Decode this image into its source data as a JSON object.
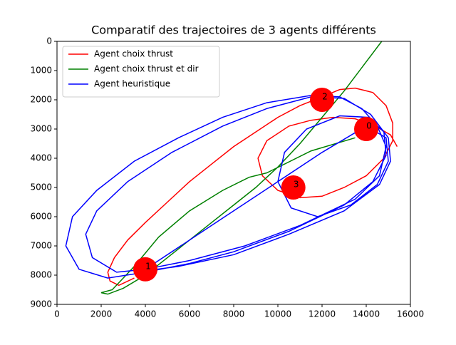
{
  "chart_data": {
    "type": "line",
    "title": "Comparatif des trajectoires de 3 agents différents",
    "xlim": [
      0,
      16000
    ],
    "xticks": [
      0,
      2000,
      4000,
      6000,
      8000,
      10000,
      12000,
      14000,
      16000
    ],
    "ylim": [
      9000,
      0
    ],
    "yticks": [
      0,
      1000,
      2000,
      3000,
      4000,
      5000,
      6000,
      7000,
      8000,
      9000
    ],
    "legend": "upper left",
    "series": [
      {
        "name": "Agent choix thrust",
        "color": "#ff0000",
        "x": [
          3500,
          2800,
          2400,
          2300,
          2600,
          3200,
          4000,
          5000,
          6000,
          7000,
          8000,
          9000,
          10000,
          11000,
          12000,
          12800,
          13500,
          14300,
          14900,
          15200,
          15200,
          14800,
          14000,
          13000,
          12000,
          11000,
          10000,
          9300,
          9100,
          9500,
          10500,
          11500,
          12500,
          13500,
          14400,
          15100,
          15400
        ],
        "values": [
          8100,
          8350,
          8200,
          7900,
          7400,
          6800,
          6200,
          5500,
          4800,
          4200,
          3600,
          3100,
          2600,
          2200,
          1900,
          1650,
          1600,
          1750,
          2200,
          2800,
          3400,
          4000,
          4600,
          5000,
          5300,
          5350,
          5100,
          4600,
          4000,
          3400,
          2900,
          2700,
          2600,
          2650,
          2900,
          3200,
          3600
        ]
      },
      {
        "name": "Agent choix thrust et dir",
        "color": "#008000",
        "x": [
          13500,
          11500,
          9500,
          8700,
          7500,
          6000,
          4600,
          3500,
          2500,
          2000,
          2300,
          3000,
          4000,
          5000,
          6000,
          7000,
          8000,
          9000,
          10000,
          11000,
          12000,
          13000,
          14000,
          14700
        ],
        "values": [
          3300,
          3750,
          4500,
          4650,
          5100,
          5800,
          6700,
          7700,
          8500,
          8600,
          8650,
          8450,
          8000,
          7400,
          6800,
          6200,
          5600,
          5000,
          4300,
          3500,
          2600,
          1700,
          700,
          0
        ]
      },
      {
        "name": "Agent heuristique",
        "color": "#0000ff",
        "x": [
          4000,
          7000,
          10000,
          12000,
          14000,
          14900,
          15000,
          14500,
          13300,
          11800,
          10600,
          10000,
          10300,
          11300,
          12800,
          14100,
          14800,
          14900,
          14300,
          13000,
          10500,
          8000,
          6000,
          4000,
          2300,
          1000,
          400,
          700,
          1800,
          3500,
          5500,
          7500,
          9500,
          11500,
          12800,
          13800,
          14500,
          14900,
          14600,
          13500,
          11000,
          8500,
          6000,
          4000,
          2700,
          1600,
          1300,
          1800,
          3200,
          5200,
          7500,
          9500,
          11500,
          13000,
          14200,
          15000,
          15100,
          14600,
          13000,
          10500,
          8000,
          5500,
          4000
        ],
        "values": [
          7800,
          6300,
          4800,
          3800,
          2900,
          3300,
          4100,
          4900,
          5600,
          6000,
          5700,
          4800,
          3800,
          3000,
          2550,
          2600,
          3100,
          3900,
          4800,
          5600,
          6500,
          7200,
          7600,
          7900,
          8100,
          7800,
          7000,
          6000,
          5100,
          4100,
          3300,
          2600,
          2100,
          1850,
          1900,
          2300,
          2900,
          3600,
          4600,
          5400,
          6300,
          7000,
          7500,
          7800,
          7900,
          7400,
          6600,
          5800,
          4800,
          3800,
          2900,
          2300,
          1900,
          1950,
          2500,
          3300,
          4100,
          4900,
          5800,
          6600,
          7300,
          7700,
          7850
        ]
      }
    ],
    "checkpoints": {
      "color": "#ff0000",
      "labels": [
        "0",
        "1",
        "2",
        "3"
      ],
      "x": [
        14000,
        4000,
        12000,
        10700
      ],
      "y": [
        3000,
        7800,
        2000,
        5000
      ]
    }
  }
}
